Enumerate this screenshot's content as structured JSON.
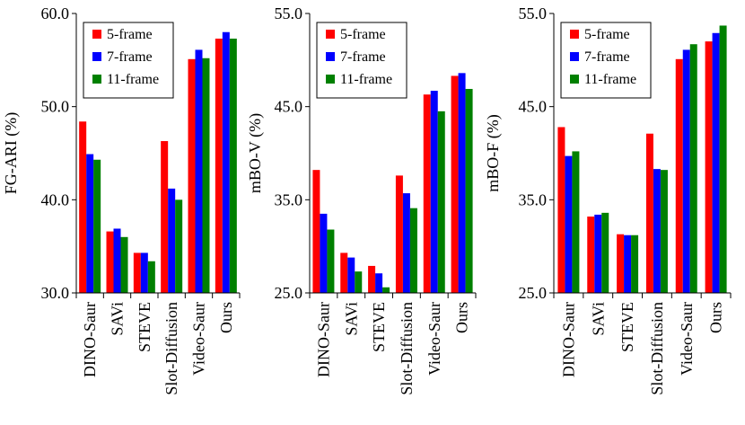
{
  "legend": [
    "5-frame",
    "7-frame",
    "11-frame"
  ],
  "colors": {
    "5-frame": "#ff0000",
    "7-frame": "#0000ff",
    "11-frame": "#008000"
  },
  "chart_data": [
    {
      "type": "bar",
      "ylabel": "FG-ARI (%)",
      "ylim": [
        30,
        60
      ],
      "yticks": [
        "30.0",
        "40.0",
        "50.0",
        "60.0"
      ],
      "categories": [
        "DINO-Saur",
        "SAVi",
        "STEVE",
        "Slot-Diffusion",
        "Video-Saur",
        "Ours"
      ],
      "series": [
        {
          "name": "5-frame",
          "values": [
            48.4,
            36.6,
            34.3,
            46.3,
            55.1,
            57.3
          ]
        },
        {
          "name": "7-frame",
          "values": [
            44.9,
            36.9,
            34.3,
            41.2,
            56.1,
            58.0
          ]
        },
        {
          "name": "11-frame",
          "values": [
            44.3,
            36.0,
            33.4,
            40.0,
            55.2,
            57.3
          ]
        }
      ],
      "legend_position": "top-left",
      "grid": false
    },
    {
      "type": "bar",
      "ylabel": "mBO-V (%)",
      "ylim": [
        25,
        55
      ],
      "yticks": [
        "25.0",
        "35.0",
        "45.0",
        "55.0"
      ],
      "categories": [
        "DINO-Saur",
        "SAVi",
        "STEVE",
        "Slot-Diffusion",
        "Video-Saur",
        "Ours"
      ],
      "series": [
        {
          "name": "5-frame",
          "values": [
            38.2,
            29.3,
            27.9,
            37.6,
            46.3,
            48.3
          ]
        },
        {
          "name": "7-frame",
          "values": [
            33.5,
            28.8,
            27.1,
            35.7,
            46.7,
            48.6
          ]
        },
        {
          "name": "11-frame",
          "values": [
            31.8,
            27.3,
            25.6,
            34.1,
            44.5,
            46.9
          ]
        }
      ],
      "legend_position": "top-left",
      "grid": false
    },
    {
      "type": "bar",
      "ylabel": "mBO-F (%)",
      "ylim": [
        25,
        55
      ],
      "yticks": [
        "25.0",
        "35.0",
        "45.0",
        "55.0"
      ],
      "categories": [
        "DINO-Saur",
        "SAVi",
        "STEVE",
        "Slot-Diffusion",
        "Video-Saur",
        "Ours"
      ],
      "series": [
        {
          "name": "5-frame",
          "values": [
            42.8,
            33.2,
            31.3,
            42.1,
            50.1,
            52.0
          ]
        },
        {
          "name": "7-frame",
          "values": [
            39.7,
            33.4,
            31.2,
            38.3,
            51.1,
            52.9
          ]
        },
        {
          "name": "11-frame",
          "values": [
            40.2,
            33.6,
            31.2,
            38.2,
            51.7,
            53.7
          ]
        }
      ],
      "legend_position": "top-left",
      "grid": false
    }
  ]
}
